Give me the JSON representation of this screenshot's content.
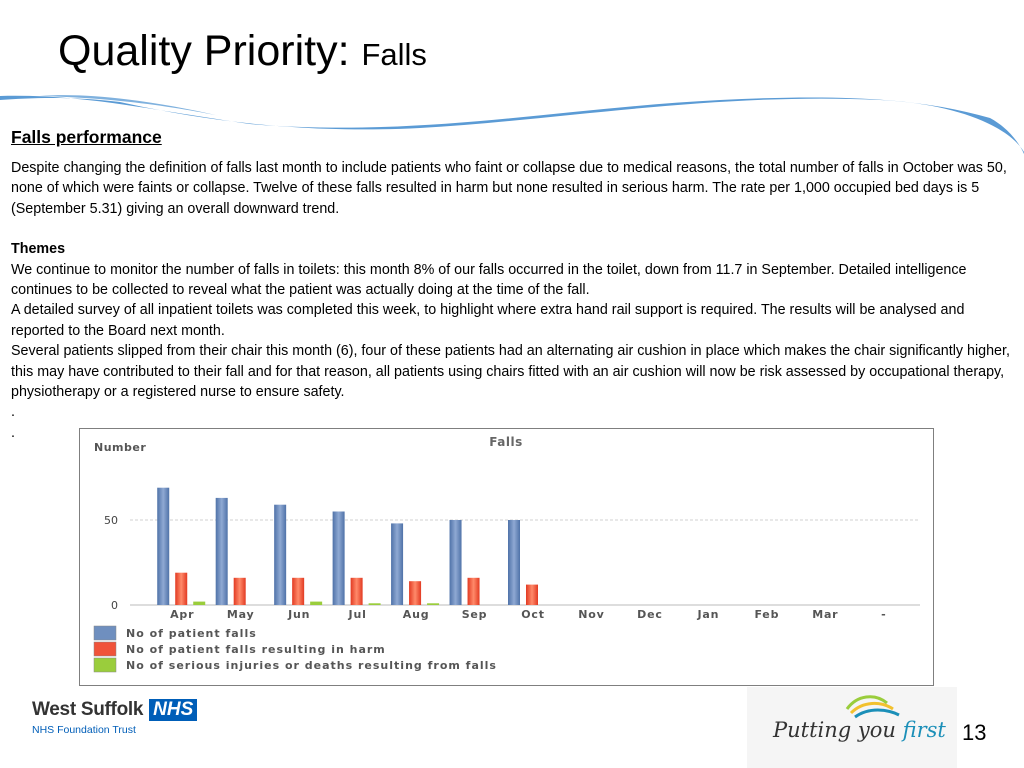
{
  "slide": {
    "title_main": "Quality Priority: ",
    "title_sub": "Falls",
    "page_number": "13"
  },
  "content": {
    "heading": "Falls performance",
    "intro": "Despite changing the definition of falls last month to include patients who faint or collapse due to medical reasons, the total number of falls in October was 50, none of which were faints or collapse.  Twelve of these falls resulted in harm but none resulted in serious harm. The rate per 1,000 occupied bed days is 5 (September 5.31) giving an overall downward trend.",
    "themes_heading": "Themes",
    "themes": [
      "We continue to monitor the number of falls in toilets: this month 8% of our falls occurred in the toilet, down from 11.7 in September. Detailed intelligence continues to be collected to reveal what the patient was actually doing at the time of the fall.",
      "A detailed survey of all inpatient toilets was completed this week, to highlight where extra hand rail support is required. The results will be analysed and reported to the Board next month.",
      "Several patients slipped from their chair this month (6), four of these patients had an alternating air cushion in place which makes the chair significantly higher, this may have contributed to their fall and for that reason, all patients using chairs fitted with an air cushion will now be risk assessed by occupational therapy, physiotherapy or a registered nurse to ensure safety."
    ],
    "dots": [
      ".",
      "."
    ]
  },
  "chart_data": {
    "type": "bar",
    "title": "Falls",
    "ylabel": "Number",
    "xlabel": "",
    "categories": [
      "Apr",
      "May",
      "Jun",
      "Jul",
      "Aug",
      "Sep",
      "Oct",
      "Nov",
      "Dec",
      "Jan",
      "Feb",
      "Mar",
      "-"
    ],
    "yticks": [
      0,
      50
    ],
    "ylim": [
      0,
      80
    ],
    "grid": true,
    "legend_position": "bottom-left",
    "series": [
      {
        "name": "No of patient falls",
        "color": "#6f8fbf",
        "values": [
          69,
          63,
          59,
          55,
          48,
          50,
          50,
          null,
          null,
          null,
          null,
          null,
          null
        ]
      },
      {
        "name": "No of patient falls resulting in harm",
        "color": "#f0533a",
        "values": [
          19,
          16,
          16,
          16,
          14,
          16,
          12,
          null,
          null,
          null,
          null,
          null,
          null
        ]
      },
      {
        "name": "No of serious injuries or deaths resulting from falls",
        "color": "#9acd3c",
        "values": [
          2,
          0,
          2,
          1,
          1,
          0,
          0,
          null,
          null,
          null,
          null,
          null,
          null
        ]
      }
    ]
  },
  "footer": {
    "org_name": "West Suffolk",
    "nhs_badge": "NHS",
    "org_trust": "NHS Foundation Trust",
    "slogan_main": "Putting you ",
    "slogan_emph": "first"
  },
  "colors": {
    "swoosh": "#5b9bd5",
    "nhs_blue": "#005eb8"
  }
}
